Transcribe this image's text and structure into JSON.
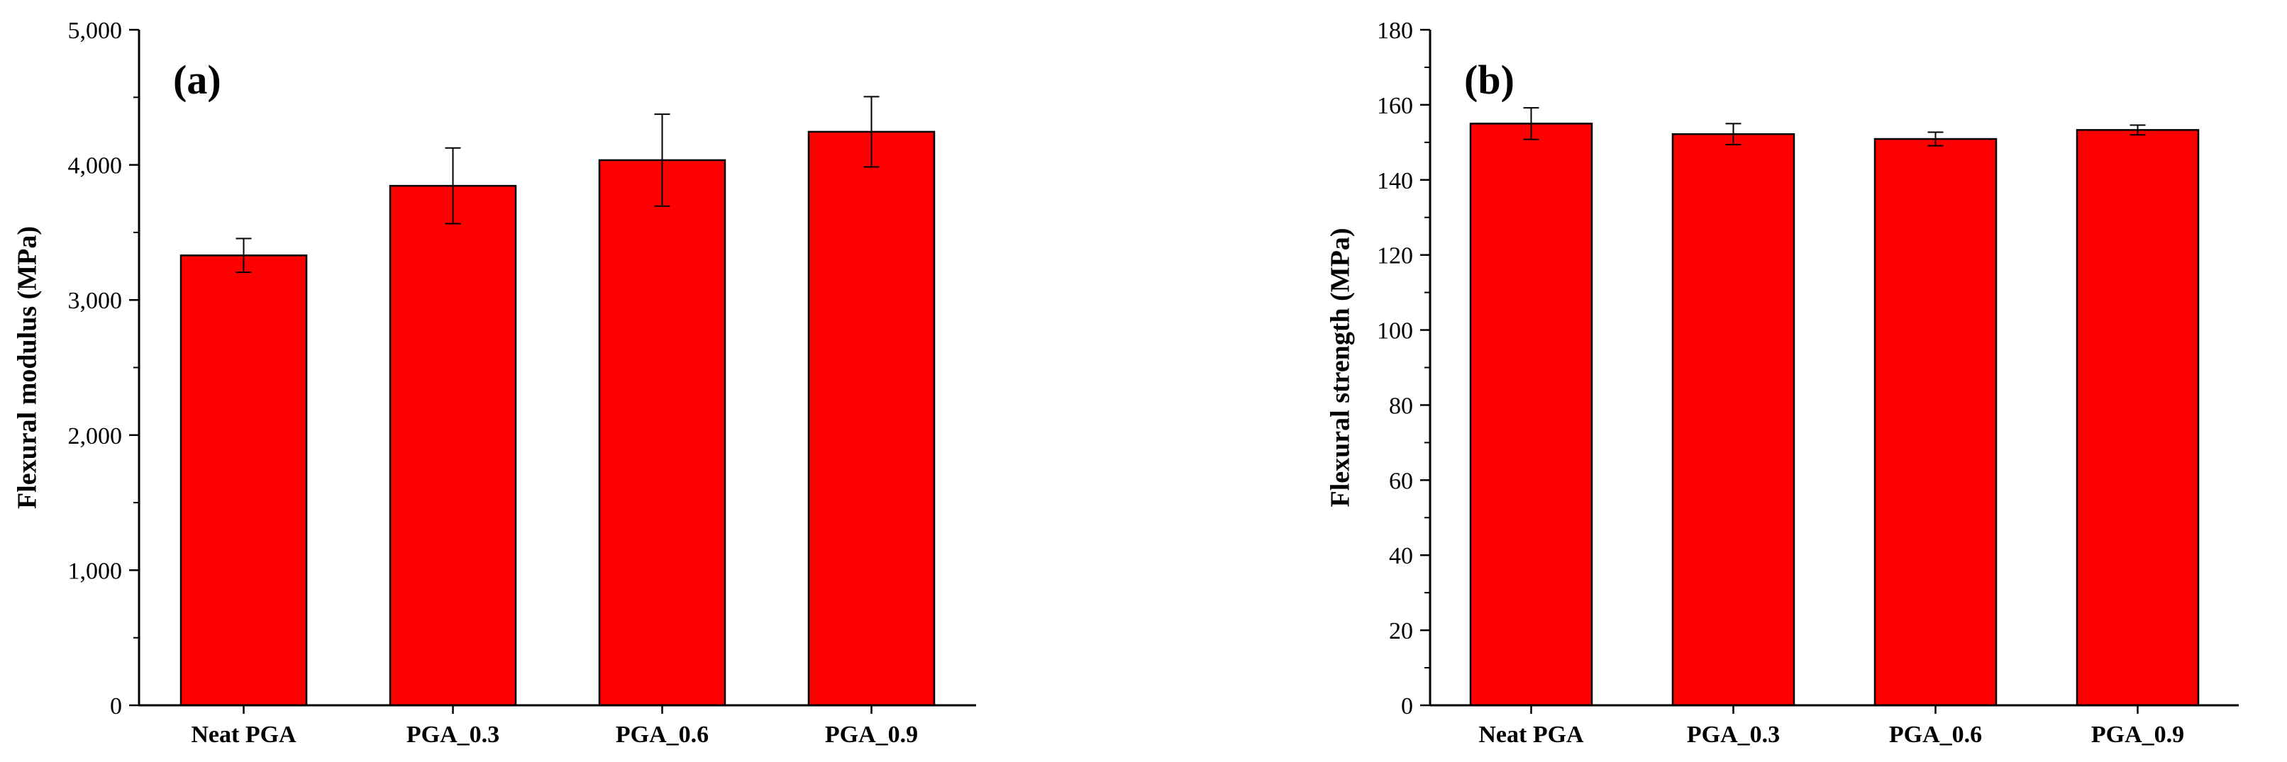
{
  "chart_data": [
    {
      "type": "bar",
      "panel_label": "(a)",
      "categories": [
        "Neat PGA",
        "PGA_0.3",
        "PGA_0.6",
        "PGA_0.9"
      ],
      "values": [
        3330,
        3845,
        4035,
        4245
      ],
      "errors": [
        125,
        280,
        340,
        260
      ],
      "ylabel": "Flexural modulus (MPa)",
      "xlabel": "",
      "ylim": [
        0,
        5000
      ],
      "yticks": [
        0,
        1000,
        2000,
        3000,
        4000,
        5000
      ],
      "ytick_labels": [
        "0",
        "1,000",
        "2,000",
        "3,000",
        "4,000",
        "5,000"
      ],
      "bar_color": "#ff0000",
      "grid": false
    },
    {
      "type": "bar",
      "panel_label": "(b)",
      "categories": [
        "Neat PGA",
        "PGA_0.3",
        "PGA_0.6",
        "PGA_0.9"
      ],
      "values": [
        155,
        152.2,
        150.9,
        153.3
      ],
      "errors": [
        4.2,
        2.8,
        1.8,
        1.3
      ],
      "ylabel": "Flexural strength (MPa)",
      "xlabel": "",
      "ylim": [
        0,
        180
      ],
      "yticks": [
        0,
        20,
        40,
        60,
        80,
        100,
        120,
        140,
        160,
        180
      ],
      "ytick_labels": [
        "0",
        "20",
        "40",
        "60",
        "80",
        "100",
        "120",
        "140",
        "160",
        "180"
      ],
      "bar_color": "#ff0000",
      "grid": false
    }
  ]
}
